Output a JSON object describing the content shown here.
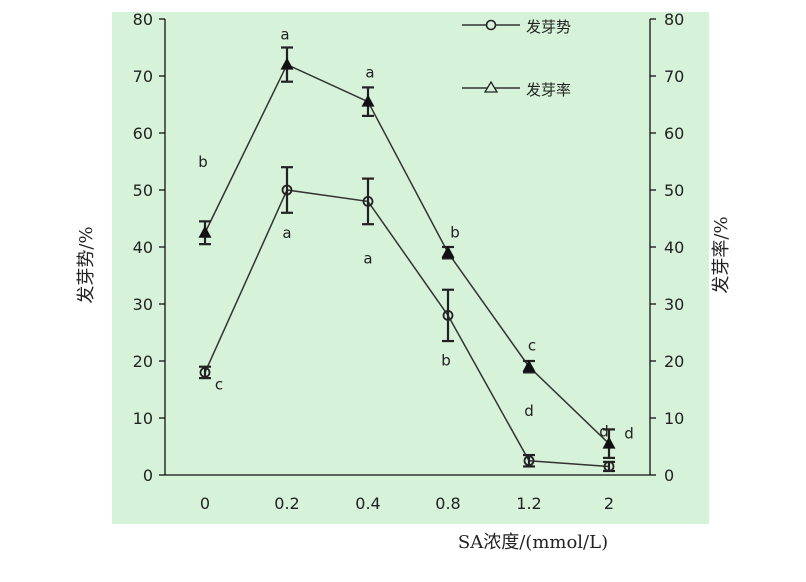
{
  "chart_data": {
    "type": "line",
    "categories": [
      "0",
      "0.2",
      "0.4",
      "0.8",
      "1.2",
      "2"
    ],
    "xlabel": "SA浓度/(mmol/L)",
    "ylabel_left": "发芽势/%",
    "ylabel_right": "发芽率/%",
    "ylim": [
      0,
      80
    ],
    "yticks": [
      "0",
      "10",
      "20",
      "30",
      "40",
      "50",
      "60",
      "70",
      "80"
    ],
    "legend_position": "top-right",
    "background_color": "#d6f2d8",
    "series": [
      {
        "name": "发芽势",
        "marker": "circle",
        "values": [
          18,
          50,
          48,
          28,
          2.5,
          1.5
        ],
        "errors": [
          1,
          4,
          4,
          4.5,
          1,
          0.8
        ],
        "labels": [
          "c",
          "a",
          "a",
          "b",
          "d",
          "d"
        ]
      },
      {
        "name": "发芽率",
        "marker": "triangle",
        "values": [
          42.5,
          72,
          65.5,
          39,
          19,
          5.5
        ],
        "errors": [
          2,
          3,
          2.5,
          1,
          1,
          2.5
        ],
        "labels": [
          "b",
          "a",
          "a",
          "b",
          "c",
          "d"
        ]
      }
    ]
  }
}
